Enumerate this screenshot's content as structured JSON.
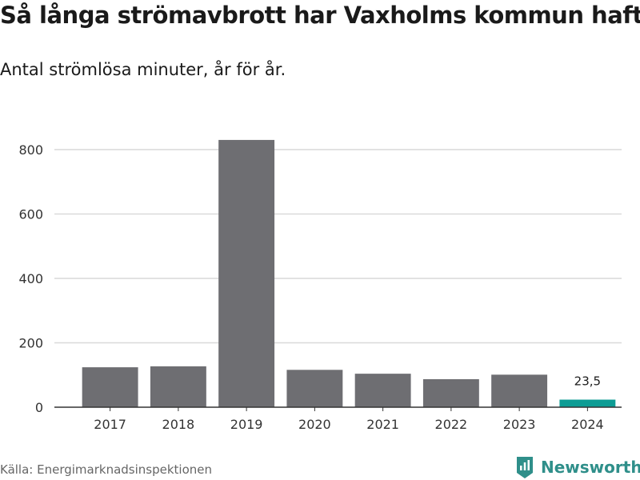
{
  "header": {
    "title": "Så långa strömavbrott har Vaxholms kommun haft",
    "subtitle": "Antal strömlösa minuter, år för år."
  },
  "footer": {
    "source": "Källa: Energimarknadsinspektionen",
    "brand": "Newsworthy",
    "brand_icon": "newsworthy-logo-icon"
  },
  "colors": {
    "bar": "#6e6e72",
    "highlight": "#0d9c94",
    "grid": "#d9d9d9",
    "axis": "#333333",
    "brand": "#2f8f8a"
  },
  "chart_data": {
    "type": "bar",
    "categories": [
      "2017",
      "2018",
      "2019",
      "2020",
      "2021",
      "2022",
      "2023",
      "2024"
    ],
    "values": [
      124,
      127,
      830,
      116,
      104,
      87,
      101,
      23.5
    ],
    "highlight_index": 7,
    "data_labels": [
      {
        "index": 7,
        "text": "23,5"
      }
    ],
    "ylim": [
      0,
      880
    ],
    "yticks": [
      0,
      200,
      400,
      600,
      800
    ],
    "ytick_labels": [
      "0",
      "200",
      "400",
      "600",
      "800"
    ],
    "grid": true,
    "legend": "none"
  }
}
